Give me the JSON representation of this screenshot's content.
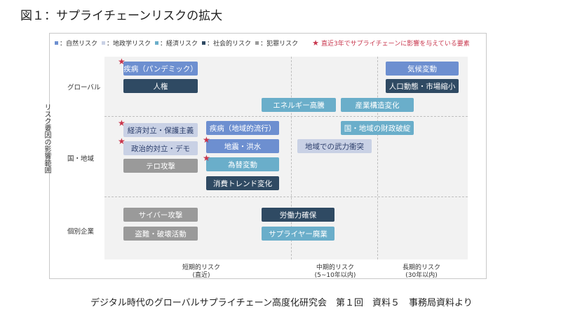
{
  "title": "図１：サプライチェーンリスクの拡大",
  "legend": {
    "items": [
      {
        "label": "：自然リスク",
        "color": "#6d8fd0"
      },
      {
        "label": "：地政学リスク",
        "color": "#c9d1e5"
      },
      {
        "label": "：経済リスク",
        "color": "#6aaeca"
      },
      {
        "label": "：社会的リスク",
        "color": "#2f4a63"
      },
      {
        "label": "：犯罪リスク",
        "color": "#9a9a9a"
      }
    ],
    "star_label": "直近3年でサプライチェーンに影響を与えている要素"
  },
  "y_axis_label": "リスク要因の影響範囲",
  "rows": [
    "グローバル",
    "国・地域",
    "個別企業"
  ],
  "columns": [
    {
      "line1": "短期的リスク",
      "line2": "(直近)"
    },
    {
      "line1": "中期的リスク",
      "line2": "(5~10年以内)"
    },
    {
      "line1": "長期的リスク",
      "line2": "(30年以内)"
    }
  ],
  "boxes": [
    {
      "label": "疾病（パンデミック）",
      "category": "nat",
      "star": true
    },
    {
      "label": "人権",
      "category": "soc",
      "star": false
    },
    {
      "label": "気候変動",
      "category": "nat",
      "star": false
    },
    {
      "label": "人口動態・市場縮小",
      "category": "soc",
      "star": false
    },
    {
      "label": "エネルギー高騰",
      "category": "eco",
      "star": false
    },
    {
      "label": "産業構造変化",
      "category": "eco",
      "star": false
    },
    {
      "label": "経済対立・保護主義",
      "category": "geo",
      "star": true
    },
    {
      "label": "政治的対立・デモ",
      "category": "geo",
      "star": true
    },
    {
      "label": "テロ攻撃",
      "category": "cri",
      "star": false
    },
    {
      "label": "疾病（地域的流行）",
      "category": "nat",
      "star": false
    },
    {
      "label": "地震・洪水",
      "category": "nat",
      "star": true
    },
    {
      "label": "為替変動",
      "category": "eco",
      "star": true
    },
    {
      "label": "消費トレンド変化",
      "category": "soc",
      "star": false
    },
    {
      "label": "国・地域の財政破綻",
      "category": "eco",
      "star": false
    },
    {
      "label": "地域での武力衝突",
      "category": "geo",
      "star": false
    },
    {
      "label": "サイバー攻撃",
      "category": "cri",
      "star": false
    },
    {
      "label": "盗難・破壊活動",
      "category": "cri",
      "star": false
    },
    {
      "label": "労働力確保",
      "category": "soc",
      "star": false
    },
    {
      "label": "サプライヤー廃業",
      "category": "eco",
      "star": false
    }
  ],
  "footer": "デジタル時代のグローバルサプライチェーン高度化研究会　第１回　資料５　事務局資料より"
}
